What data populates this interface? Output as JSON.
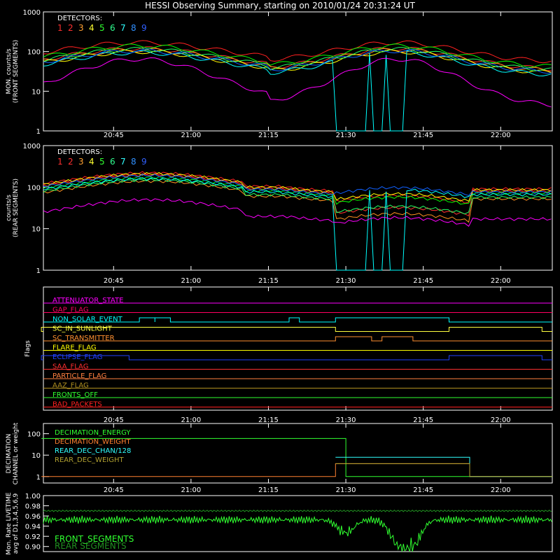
{
  "title": "HESSI Observing Summary, starting on 2010/01/24 20:31:24 UT",
  "colors": {
    "det": [
      "#ff2020",
      "#ff3030",
      "#ff9020",
      "#ffff00",
      "#00ff00",
      "#20ff60",
      "#00ffff",
      "#1060ff",
      "#ff00ff"
    ],
    "det_label": [
      "#ff3030",
      "#ff3030",
      "#ffa030",
      "#ffff30",
      "#30ff30",
      "#30ff90",
      "#30ffff",
      "#3090ff",
      "#3060ff"
    ]
  },
  "chart_data": [
    {
      "type": "line",
      "ylabel": "MON. counts/s (FRONT SEGMENTS)",
      "ylabel_lines": [
        "MON. counts/s",
        "(FRONT SEGMENTS)"
      ],
      "ylog": true,
      "ylim": [
        1,
        1000
      ],
      "yticks": [
        "1",
        "10",
        "100",
        "1000"
      ],
      "xticks": [
        "20:45",
        "21:00",
        "21:15",
        "21:30",
        "21:45",
        "22:00"
      ],
      "xlim_minutes": [
        0,
        94
      ],
      "detectors_label": "DETECTORS:",
      "detector_numbers": [
        "1",
        "2",
        "3",
        "4",
        "5",
        "6",
        "7",
        "8",
        "9"
      ],
      "series_peak_values": [
        170,
        120,
        110,
        100,
        140,
        115,
        95,
        105,
        65
      ],
      "series_min_values": [
        55,
        35,
        32,
        28,
        40,
        33,
        25,
        30,
        4
      ],
      "peak_times": [
        "20:50",
        "21:40"
      ],
      "min_time": "21:15",
      "dropout_times": [
        "21:28",
        "21:34",
        "21:37",
        "21:41"
      ]
    },
    {
      "type": "line",
      "ylabel": "counts/s (REAR SEGMENTS)",
      "ylabel_lines": [
        "counts/s",
        "(REAR SEGMENTS)"
      ],
      "ylog": true,
      "ylim": [
        1,
        1000
      ],
      "yticks": [
        "1",
        "10",
        "100",
        "1000"
      ],
      "xticks": [
        "20:45",
        "21:00",
        "21:15",
        "21:30",
        "21:45",
        "22:00"
      ],
      "detectors_label": "DETECTORS:",
      "detector_numbers": [
        "1",
        "2",
        "3",
        "4",
        "5",
        "6",
        "7",
        "8",
        "9"
      ],
      "series_start_values": [
        95,
        85,
        55,
        90,
        75,
        60,
        70,
        80,
        18
      ],
      "series_peak_values": [
        220,
        200,
        140,
        210,
        170,
        150,
        160,
        190,
        50
      ],
      "decimated_values": [
        55,
        28,
        20,
        60,
        50,
        30,
        75,
        85,
        16
      ],
      "decimation_window": [
        "21:28",
        "21:54"
      ]
    },
    {
      "type": "line",
      "ylabel": "Flags",
      "flags": [
        {
          "name": "ATTENUATOR_STATE",
          "color": "#ff00ff",
          "on": []
        },
        {
          "name": "GAP_FLAG",
          "color": "#ff0060",
          "on": []
        },
        {
          "name": "NON_SOLAR_EVENT",
          "color": "#00ffff",
          "on": [
            [
              "20:50",
              "20:53"
            ],
            [
              "21:19",
              "21:21"
            ],
            [
              "21:28",
              "21:50"
            ],
            [
              "20:53",
              "20:56"
            ]
          ]
        },
        {
          "name": "SC_IN_SUNLIGHT",
          "color": "#ffff40",
          "on": [
            [
              "20:31",
              "21:28"
            ],
            [
              "21:50",
              "22:08"
            ]
          ]
        },
        {
          "name": "SC_TRANSMITTER",
          "color": "#ff9030",
          "on": [
            [
              "21:28",
              "21:35"
            ],
            [
              "21:37",
              "21:43"
            ]
          ]
        },
        {
          "name": "FLARE_FLAG",
          "color": "#ffff00",
          "on": []
        },
        {
          "name": "ECLIPSE_FLAG",
          "color": "#2040ff",
          "on": [
            [
              "20:31",
              "20:48"
            ],
            [
              "21:50",
              "22:08"
            ]
          ]
        },
        {
          "name": "SAA_FLAG",
          "color": "#ff3030",
          "on": []
        },
        {
          "name": "PARTICLE_FLAG",
          "color": "#ff8040",
          "on": []
        },
        {
          "name": "AAZ_FLAG",
          "color": "#b09020",
          "on": []
        },
        {
          "name": "FRONTS_OFF",
          "color": "#30ff30",
          "on": []
        },
        {
          "name": "BAD_PACKETS",
          "color": "#ff2020",
          "on": []
        }
      ]
    },
    {
      "type": "line",
      "ylabel": "DECIMATION CHANNEL or weight",
      "ylabel_lines": [
        "DECIMATION",
        "CHANNEL or weight"
      ],
      "ylog": true,
      "ylim": [
        0.5,
        300
      ],
      "yticks": [
        "1",
        "10",
        "100"
      ],
      "series": [
        {
          "name": "DECIMATION_ENERGY",
          "color": "#30ff30",
          "values": [
            {
              "t": "20:31",
              "v": 60
            },
            {
              "t": "21:30",
              "v": 1
            }
          ]
        },
        {
          "name": "DECIMATION_WEIGHT",
          "color": "#ff8030",
          "values": [
            {
              "t": "20:31",
              "v": 1
            },
            {
              "t": "21:28",
              "v": 4
            },
            {
              "t": "21:54",
              "v": 1
            }
          ]
        },
        {
          "name": "REAR_DEC_CHAN/128",
          "color": "#30ffff",
          "values": [
            {
              "t": "21:28",
              "v": 8
            },
            {
              "t": "21:54",
              "v": 1
            }
          ]
        },
        {
          "name": "REAR_DEC_WEIGHT",
          "color": "#b0a030",
          "values": [
            {
              "t": "21:28",
              "v": 4
            },
            {
              "t": "21:54",
              "v": 1
            }
          ]
        }
      ]
    },
    {
      "type": "line",
      "ylabel": "Mon. Rate LIVETIME avg of D1,3,4,5,6,9",
      "ylabel_lines": [
        "Mon. Rate LIVETIME",
        "avg of D1,3,4,5,6,9"
      ],
      "ylim": [
        0.89,
        1.0
      ],
      "yticks": [
        "0.90",
        "0.92",
        "0.94",
        "0.96",
        "0.98",
        "1.00"
      ],
      "series": [
        {
          "name": "FRONT_SEGMENTS",
          "color": "#30ff30",
          "baseline": 0.955,
          "dips": [
            {
              "t": "21:30",
              "v": 0.925
            },
            {
              "t": "21:40",
              "v": 0.905
            },
            {
              "t": "21:43",
              "v": 0.9
            }
          ]
        },
        {
          "name": "REAR SEGMENTS",
          "color": "#209020",
          "baseline": 0.97
        }
      ]
    }
  ]
}
